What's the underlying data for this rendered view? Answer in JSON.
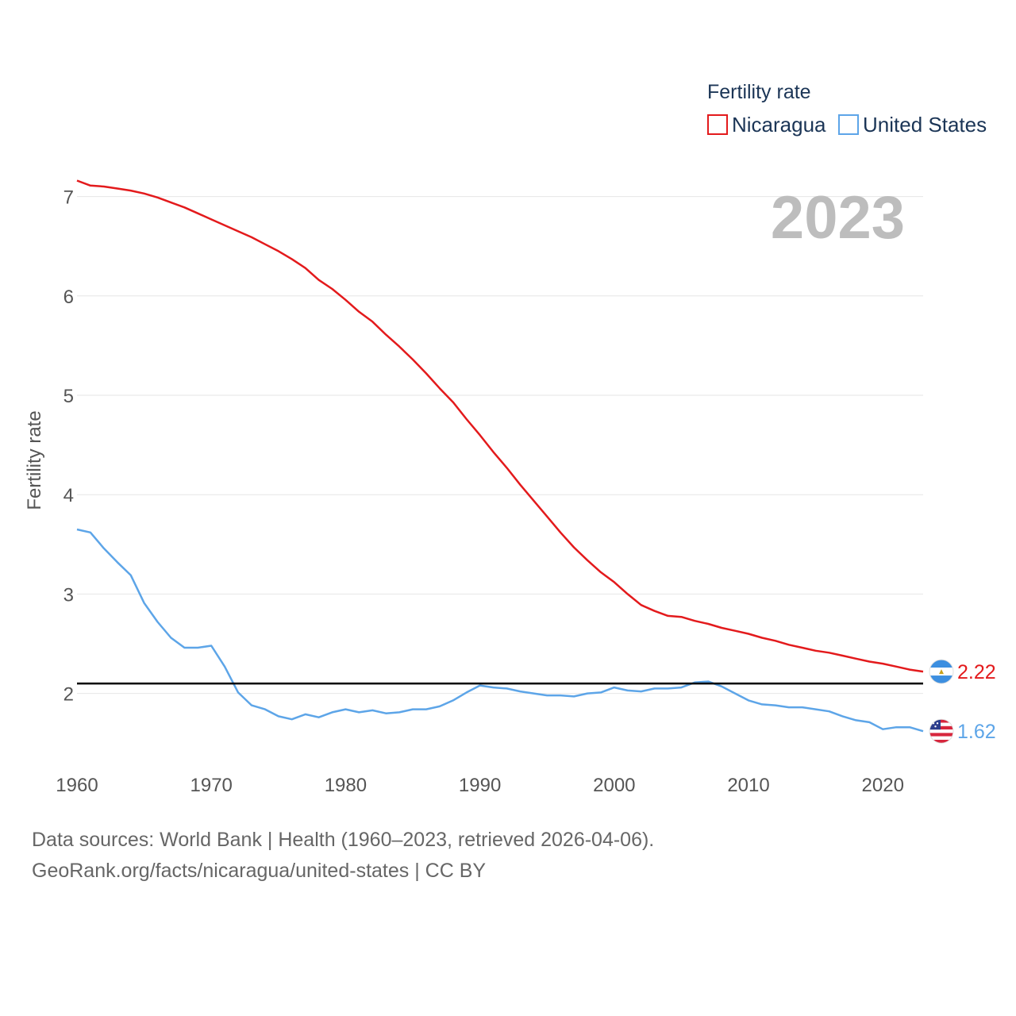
{
  "chart_data": {
    "type": "line",
    "title": "",
    "legend_title": "Fertility rate",
    "year_label": "2023",
    "ylabel": "Fertility rate",
    "xlabel": "",
    "xlim": [
      1960,
      2023
    ],
    "ylim": [
      1.35,
      7.3
    ],
    "x_ticks": [
      1960,
      1970,
      1980,
      1990,
      2000,
      2010,
      2020
    ],
    "y_ticks": [
      2,
      3,
      4,
      5,
      6,
      7
    ],
    "reference_line": 2.1,
    "x": [
      1960,
      1961,
      1962,
      1963,
      1964,
      1965,
      1966,
      1967,
      1968,
      1969,
      1970,
      1971,
      1972,
      1973,
      1974,
      1975,
      1976,
      1977,
      1978,
      1979,
      1980,
      1981,
      1982,
      1983,
      1984,
      1985,
      1986,
      1987,
      1988,
      1989,
      1990,
      1991,
      1992,
      1993,
      1994,
      1995,
      1996,
      1997,
      1998,
      1999,
      2000,
      2001,
      2002,
      2003,
      2004,
      2005,
      2006,
      2007,
      2008,
      2009,
      2010,
      2011,
      2012,
      2013,
      2014,
      2015,
      2016,
      2017,
      2018,
      2019,
      2020,
      2021,
      2022,
      2023
    ],
    "series": [
      {
        "name": "Nicaragua",
        "color": "#e31a1c",
        "end_label": "2.22",
        "flag": "nicaragua-flag-icon",
        "values": [
          7.16,
          7.11,
          7.1,
          7.08,
          7.06,
          7.03,
          6.99,
          6.94,
          6.89,
          6.83,
          6.77,
          6.71,
          6.65,
          6.59,
          6.52,
          6.45,
          6.37,
          6.28,
          6.16,
          6.07,
          5.96,
          5.84,
          5.74,
          5.61,
          5.49,
          5.36,
          5.22,
          5.07,
          4.93,
          4.76,
          4.6,
          4.43,
          4.27,
          4.1,
          3.94,
          3.78,
          3.62,
          3.47,
          3.34,
          3.22,
          3.12,
          3.0,
          2.89,
          2.83,
          2.78,
          2.77,
          2.73,
          2.7,
          2.66,
          2.63,
          2.6,
          2.56,
          2.53,
          2.49,
          2.46,
          2.43,
          2.41,
          2.38,
          2.35,
          2.32,
          2.3,
          2.27,
          2.24,
          2.22
        ]
      },
      {
        "name": "United States",
        "color": "#5da5e8",
        "end_label": "1.62",
        "flag": "united-states-flag-icon",
        "values": [
          3.65,
          3.62,
          3.46,
          3.32,
          3.19,
          2.91,
          2.72,
          2.56,
          2.46,
          2.46,
          2.48,
          2.27,
          2.01,
          1.88,
          1.84,
          1.77,
          1.74,
          1.79,
          1.76,
          1.81,
          1.84,
          1.81,
          1.83,
          1.8,
          1.81,
          1.84,
          1.84,
          1.87,
          1.93,
          2.01,
          2.08,
          2.06,
          2.05,
          2.02,
          2.0,
          1.98,
          1.98,
          1.97,
          2.0,
          2.01,
          2.06,
          2.03,
          2.02,
          2.05,
          2.05,
          2.06,
          2.11,
          2.12,
          2.07,
          2.0,
          1.93,
          1.89,
          1.88,
          1.86,
          1.86,
          1.84,
          1.82,
          1.77,
          1.73,
          1.71,
          1.64,
          1.66,
          1.66,
          1.62
        ]
      }
    ]
  },
  "footer": {
    "line1": "Data sources: World Bank | Health (1960–2023, retrieved 2026-04-06).",
    "line2": "GeoRank.org/facts/nicaragua/united-states | CC BY"
  }
}
